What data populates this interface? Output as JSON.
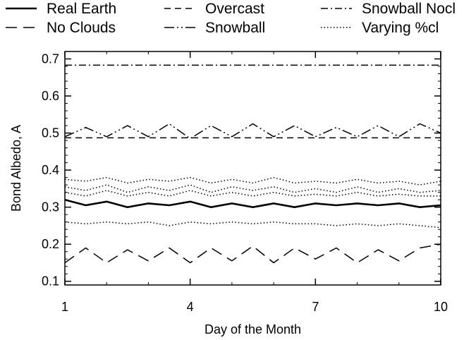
{
  "chart_data": {
    "type": "line",
    "title": "",
    "xlabel": "Day of the Month",
    "ylabel": "Bond Albedo, A",
    "xlim": [
      1,
      10
    ],
    "ylim": [
      0.09,
      0.72
    ],
    "xticks": [
      1,
      4,
      7,
      10
    ],
    "yticks": [
      0.1,
      0.2,
      0.3,
      0.4,
      0.5,
      0.6,
      0.7
    ],
    "ytick_labels": [
      "0.1",
      "0.2",
      "0.3",
      "0.4",
      "0.5",
      "0.6",
      "0.7"
    ],
    "xtick_labels": [
      "1",
      "4",
      "7",
      "10"
    ],
    "grid": false,
    "legend_placement": "top (outside plot, 3 columns)",
    "legend": [
      {
        "label": "Real Earth",
        "style": "solid"
      },
      {
        "label": "No Clouds",
        "style": "long-dash"
      },
      {
        "label": "Overcast",
        "style": "dash"
      },
      {
        "label": "Snowball",
        "style": "long-dash-dot-dot"
      },
      {
        "label": "Snowball Nocl",
        "style": "dash-dot"
      },
      {
        "label": "Varying %cl",
        "style": "dotted"
      }
    ],
    "series": [
      {
        "name": "Snowball Nocl",
        "style": "dash-dot",
        "x": [
          1,
          10
        ],
        "y": [
          0.683,
          0.683
        ]
      },
      {
        "name": "Overcast",
        "style": "dash",
        "x": [
          1,
          10
        ],
        "y": [
          0.487,
          0.487
        ]
      },
      {
        "name": "Snowball",
        "style": "long-dash-dot-dot",
        "x": [
          1,
          1.5,
          2,
          2.5,
          3,
          3.5,
          4,
          4.5,
          5,
          5.5,
          6,
          6.5,
          7,
          7.5,
          8,
          8.5,
          9,
          9.5,
          10
        ],
        "y": [
          0.49,
          0.515,
          0.49,
          0.52,
          0.49,
          0.525,
          0.485,
          0.52,
          0.49,
          0.525,
          0.49,
          0.52,
          0.49,
          0.515,
          0.49,
          0.52,
          0.49,
          0.525,
          0.5
        ]
      },
      {
        "name": "Varying %cl",
        "style": "dotted",
        "x": [
          1,
          1.5,
          2,
          2.5,
          3,
          3.5,
          4,
          4.5,
          5,
          5.5,
          6,
          6.5,
          7,
          7.5,
          8,
          8.5,
          9,
          9.5,
          10
        ],
        "y": [
          0.375,
          0.37,
          0.38,
          0.365,
          0.375,
          0.37,
          0.38,
          0.365,
          0.375,
          0.365,
          0.38,
          0.365,
          0.37,
          0.365,
          0.375,
          0.365,
          0.37,
          0.36,
          0.37
        ]
      },
      {
        "name": "Varying %cl",
        "style": "dotted",
        "x": [
          1,
          1.5,
          2,
          2.5,
          3,
          3.5,
          4,
          4.5,
          5,
          5.5,
          6,
          6.5,
          7,
          7.5,
          8,
          8.5,
          9,
          9.5,
          10
        ],
        "y": [
          0.355,
          0.345,
          0.36,
          0.34,
          0.355,
          0.345,
          0.36,
          0.34,
          0.355,
          0.345,
          0.355,
          0.34,
          0.35,
          0.34,
          0.355,
          0.34,
          0.35,
          0.34,
          0.345
        ]
      },
      {
        "name": "Varying %cl",
        "style": "dotted",
        "x": [
          1,
          1.5,
          2,
          2.5,
          3,
          3.5,
          4,
          4.5,
          5,
          5.5,
          6,
          6.5,
          7,
          7.5,
          8,
          8.5,
          9,
          9.5,
          10
        ],
        "y": [
          0.34,
          0.33,
          0.345,
          0.33,
          0.34,
          0.33,
          0.345,
          0.33,
          0.34,
          0.33,
          0.34,
          0.33,
          0.335,
          0.33,
          0.34,
          0.33,
          0.335,
          0.33,
          0.33
        ]
      },
      {
        "name": "Real Earth",
        "style": "solid",
        "x": [
          1,
          1.5,
          2,
          2.5,
          3,
          3.5,
          4,
          4.5,
          5,
          5.5,
          6,
          6.5,
          7,
          7.5,
          8,
          8.5,
          9,
          9.5,
          10
        ],
        "y": [
          0.32,
          0.305,
          0.315,
          0.3,
          0.31,
          0.305,
          0.315,
          0.3,
          0.31,
          0.3,
          0.31,
          0.3,
          0.31,
          0.305,
          0.31,
          0.305,
          0.31,
          0.3,
          0.305
        ]
      },
      {
        "name": "Varying %cl",
        "style": "dotted",
        "x": [
          1,
          1.5,
          2,
          2.5,
          3,
          3.5,
          4,
          4.5,
          5,
          5.5,
          6,
          6.5,
          7,
          7.5,
          8,
          8.5,
          9,
          9.5,
          10
        ],
        "y": [
          0.26,
          0.255,
          0.26,
          0.255,
          0.26,
          0.25,
          0.26,
          0.255,
          0.26,
          0.255,
          0.26,
          0.255,
          0.255,
          0.25,
          0.255,
          0.25,
          0.255,
          0.25,
          0.245
        ]
      },
      {
        "name": "No Clouds",
        "style": "long-dash",
        "x": [
          1,
          1.5,
          2,
          2.5,
          3,
          3.5,
          4,
          4.5,
          5,
          5.5,
          6,
          6.5,
          7,
          7.5,
          8,
          8.5,
          9,
          9.5,
          10
        ],
        "y": [
          0.15,
          0.19,
          0.15,
          0.185,
          0.155,
          0.19,
          0.15,
          0.19,
          0.155,
          0.195,
          0.15,
          0.19,
          0.16,
          0.19,
          0.15,
          0.185,
          0.155,
          0.19,
          0.2
        ]
      }
    ]
  }
}
